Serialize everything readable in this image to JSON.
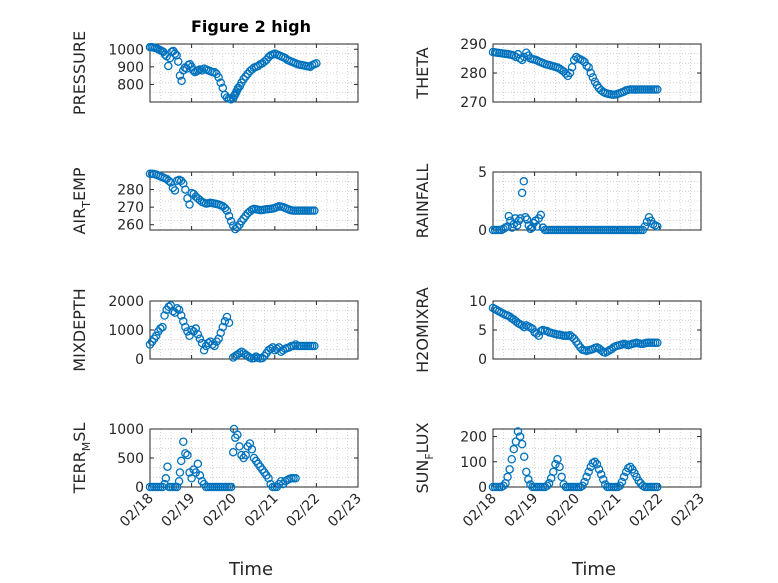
{
  "figure": {
    "title": "Figure 2 high",
    "xlabel": "Time",
    "x_tick_labels": [
      "02/18",
      "02/19",
      "02/20",
      "02/21",
      "02/22",
      "02/23"
    ],
    "marker_color": "#0072BD",
    "grid_color": "#cccccc",
    "axis_color": "#262626"
  },
  "chart_data": [
    {
      "type": "scatter",
      "ylabel": "PRESSURE",
      "ylim": [
        700,
        1030
      ],
      "yticks": [
        800,
        900,
        1000
      ],
      "x": [
        0,
        0.04,
        0.08,
        0.12,
        0.16,
        0.2,
        0.24,
        0.28,
        0.32,
        0.36,
        0.4,
        0.44,
        0.48,
        0.52,
        0.56,
        0.6,
        0.64,
        0.68,
        0.72,
        0.76,
        0.8,
        0.84,
        0.88,
        0.92,
        0.96,
        1.0,
        1.04,
        1.08,
        1.12,
        1.16,
        1.2,
        1.25,
        1.3,
        1.35,
        1.4,
        1.45,
        1.5,
        1.55,
        1.6,
        1.65,
        1.7,
        1.75,
        1.8,
        1.85,
        1.9,
        1.95,
        2.0,
        2.02,
        2.04,
        2.06,
        2.08,
        2.1,
        2.12,
        2.16,
        2.2,
        2.25,
        2.3,
        2.35,
        2.4,
        2.45,
        2.5,
        2.55,
        2.6,
        2.65,
        2.7,
        2.75,
        2.8,
        2.85,
        2.9,
        2.95,
        3.0,
        3.05,
        3.1,
        3.15,
        3.2,
        3.25,
        3.3,
        3.35,
        3.4,
        3.45,
        3.5,
        3.55,
        3.6,
        3.65,
        3.7,
        3.75,
        3.8,
        3.85,
        3.9,
        3.95,
        4.0
      ],
      "values": [
        1012,
        1012,
        1010,
        1008,
        1005,
        1000,
        995,
        990,
        985,
        970,
        960,
        905,
        950,
        985,
        990,
        975,
        965,
        930,
        850,
        820,
        880,
        895,
        890,
        910,
        915,
        900,
        880,
        870,
        875,
        880,
        885,
        880,
        890,
        885,
        880,
        875,
        870,
        870,
        860,
        840,
        810,
        780,
        740,
        725,
        720,
        715,
        720,
        735,
        740,
        750,
        760,
        770,
        780,
        790,
        810,
        830,
        845,
        860,
        875,
        885,
        895,
        900,
        905,
        915,
        920,
        930,
        940,
        955,
        965,
        970,
        975,
        970,
        965,
        960,
        955,
        950,
        940,
        935,
        930,
        925,
        920,
        915,
        912,
        910,
        908,
        905,
        903,
        900,
        910,
        915,
        920
      ]
    },
    {
      "type": "scatter",
      "ylabel": "THETA",
      "ylim": [
        270,
        290
      ],
      "yticks": [
        270,
        280,
        290
      ],
      "x": [
        0,
        0.05,
        0.1,
        0.15,
        0.2,
        0.25,
        0.3,
        0.35,
        0.4,
        0.45,
        0.5,
        0.55,
        0.6,
        0.65,
        0.7,
        0.75,
        0.8,
        0.85,
        0.9,
        0.95,
        1.0,
        1.05,
        1.1,
        1.15,
        1.2,
        1.25,
        1.3,
        1.35,
        1.4,
        1.45,
        1.5,
        1.55,
        1.6,
        1.65,
        1.7,
        1.75,
        1.8,
        1.85,
        1.9,
        1.95,
        2.0,
        2.05,
        2.1,
        2.15,
        2.2,
        2.25,
        2.3,
        2.35,
        2.4,
        2.45,
        2.5,
        2.55,
        2.6,
        2.65,
        2.7,
        2.75,
        2.8,
        2.85,
        2.9,
        2.95,
        3.0,
        3.05,
        3.1,
        3.15,
        3.2,
        3.25,
        3.3,
        3.35,
        3.4,
        3.45,
        3.5,
        3.55,
        3.6,
        3.65,
        3.7,
        3.75,
        3.8,
        3.85,
        3.9,
        3.95
      ],
      "values": [
        287.2,
        287.1,
        287,
        286.9,
        286.8,
        286.7,
        286.6,
        286.5,
        286.4,
        286.2,
        286,
        285.5,
        286.5,
        285,
        284.5,
        285.5,
        287,
        286,
        285,
        284.8,
        284.6,
        284.4,
        284,
        283.7,
        283.4,
        283.1,
        282.9,
        282.7,
        282.5,
        282.3,
        282.1,
        281.9,
        281.5,
        281,
        280.5,
        279.8,
        279,
        280,
        282,
        284.5,
        285.5,
        285,
        284.7,
        284.3,
        283.8,
        282.5,
        282,
        280,
        278.5,
        277,
        275.8,
        274.8,
        274,
        273.5,
        273.1,
        272.9,
        272.7,
        272.6,
        272.5,
        272.6,
        272.8,
        273,
        273.3,
        273.6,
        274,
        274.2,
        274.3,
        274.3,
        274.3,
        274.3,
        274.3,
        274.3,
        274.3,
        274.3,
        274.3,
        274.3,
        274.3,
        274.3,
        274.3,
        274.3
      ]
    },
    {
      "type": "scatter",
      "ylabel": "AIR_TEMP",
      "ylim": [
        257,
        290
      ],
      "yticks": [
        260,
        270,
        280
      ],
      "x": [
        0,
        0.05,
        0.1,
        0.15,
        0.2,
        0.25,
        0.3,
        0.35,
        0.4,
        0.45,
        0.5,
        0.55,
        0.6,
        0.65,
        0.7,
        0.75,
        0.8,
        0.85,
        0.9,
        0.95,
        1.0,
        1.05,
        1.1,
        1.15,
        1.2,
        1.25,
        1.3,
        1.35,
        1.4,
        1.45,
        1.5,
        1.55,
        1.6,
        1.65,
        1.7,
        1.75,
        1.8,
        1.85,
        1.9,
        1.95,
        2.0,
        2.05,
        2.1,
        2.15,
        2.2,
        2.25,
        2.3,
        2.35,
        2.4,
        2.45,
        2.5,
        2.55,
        2.6,
        2.65,
        2.7,
        2.75,
        2.8,
        2.85,
        2.9,
        2.95,
        3.0,
        3.05,
        3.1,
        3.15,
        3.2,
        3.25,
        3.3,
        3.35,
        3.4,
        3.45,
        3.5,
        3.55,
        3.6,
        3.65,
        3.7,
        3.75,
        3.8,
        3.85,
        3.9,
        3.95
      ],
      "values": [
        289,
        289,
        288.8,
        288.5,
        288,
        287.5,
        287,
        286.5,
        286,
        285,
        284,
        281,
        279.5,
        285,
        285.5,
        285,
        283.5,
        280,
        275,
        271.5,
        278,
        277.5,
        276,
        275,
        274,
        273,
        272.5,
        272,
        272.2,
        272.5,
        272.3,
        272,
        271.8,
        271.5,
        271,
        270.5,
        269.5,
        268,
        265,
        262,
        259.5,
        257.5,
        258.5,
        260,
        262,
        263.5,
        265,
        266.5,
        267.5,
        268.5,
        269,
        268.8,
        268.5,
        268.3,
        268.4,
        268.6,
        268.8,
        268.9,
        269,
        269.2,
        269.5,
        270,
        270.5,
        270.3,
        270,
        269.5,
        269,
        268.5,
        268.2,
        268,
        268,
        268,
        268,
        268,
        268,
        268,
        268,
        268,
        268,
        268
      ]
    },
    {
      "type": "scatter",
      "ylabel": "RAINFALL",
      "ylim": [
        0,
        5
      ],
      "yticks": [
        0,
        5
      ],
      "x": [
        0,
        0.05,
        0.1,
        0.15,
        0.2,
        0.25,
        0.3,
        0.35,
        0.38,
        0.42,
        0.46,
        0.5,
        0.54,
        0.58,
        0.62,
        0.66,
        0.7,
        0.74,
        0.78,
        0.82,
        0.86,
        0.9,
        0.94,
        0.98,
        1.02,
        1.06,
        1.1,
        1.15,
        1.2,
        1.25,
        1.3,
        1.35,
        1.4,
        1.45,
        1.5,
        1.55,
        1.6,
        1.65,
        1.7,
        1.75,
        1.8,
        1.85,
        1.9,
        1.95,
        2.0,
        2.05,
        2.1,
        2.15,
        2.2,
        2.25,
        2.3,
        2.35,
        2.4,
        2.45,
        2.5,
        2.55,
        2.6,
        2.65,
        2.7,
        2.75,
        2.8,
        2.85,
        2.9,
        2.95,
        3.0,
        3.05,
        3.1,
        3.15,
        3.2,
        3.25,
        3.3,
        3.35,
        3.4,
        3.45,
        3.5,
        3.55,
        3.6,
        3.65,
        3.7,
        3.75,
        3.8,
        3.85,
        3.9,
        3.95
      ],
      "values": [
        0,
        0,
        0,
        0,
        0,
        0.1,
        0.2,
        0.3,
        1.2,
        0.8,
        0.2,
        0.5,
        1,
        0.4,
        0.8,
        1,
        3.2,
        4.2,
        1.1,
        0.9,
        0.4,
        0.1,
        0.2,
        0.6,
        0.8,
        0.3,
        1,
        1.3,
        0.2,
        0,
        0,
        0,
        0,
        0,
        0,
        0,
        0,
        0,
        0,
        0,
        0,
        0,
        0,
        0,
        0,
        0,
        0,
        0,
        0,
        0,
        0,
        0,
        0,
        0,
        0,
        0,
        0,
        0,
        0,
        0,
        0,
        0,
        0,
        0,
        0,
        0,
        0,
        0,
        0,
        0,
        0,
        0,
        0,
        0,
        0,
        0,
        0,
        0.3,
        0.7,
        1.1,
        0.8,
        0.5,
        0.4,
        0.3
      ]
    },
    {
      "type": "scatter",
      "ylabel": "MIXDEPTH",
      "ylim": [
        0,
        2000
      ],
      "yticks": [
        0,
        1000,
        2000
      ],
      "x": [
        0,
        0.05,
        0.1,
        0.15,
        0.2,
        0.25,
        0.3,
        0.35,
        0.4,
        0.45,
        0.5,
        0.55,
        0.6,
        0.65,
        0.7,
        0.75,
        0.8,
        0.85,
        0.9,
        0.95,
        1.0,
        1.05,
        1.1,
        1.15,
        1.2,
        1.25,
        1.3,
        1.35,
        1.4,
        1.45,
        1.5,
        1.55,
        1.6,
        1.65,
        1.7,
        1.75,
        1.8,
        1.85,
        1.9,
        2.0,
        2.05,
        2.1,
        2.15,
        2.2,
        2.25,
        2.3,
        2.35,
        2.4,
        2.45,
        2.5,
        2.55,
        2.6,
        2.65,
        2.7,
        2.75,
        2.8,
        2.85,
        2.9,
        2.95,
        3.0,
        3.05,
        3.1,
        3.15,
        3.2,
        3.25,
        3.3,
        3.35,
        3.4,
        3.45,
        3.5,
        3.55,
        3.6,
        3.65,
        3.7,
        3.75,
        3.8,
        3.85,
        3.9,
        3.95
      ],
      "values": [
        500,
        600,
        700,
        800,
        950,
        1050,
        1100,
        1500,
        1700,
        1800,
        1850,
        1650,
        1600,
        1750,
        1700,
        1500,
        1300,
        1100,
        950,
        800,
        1000,
        950,
        1050,
        850,
        700,
        550,
        300,
        450,
        550,
        600,
        500,
        450,
        600,
        700,
        900,
        1100,
        1300,
        1450,
        1250,
        50,
        100,
        150,
        200,
        250,
        200,
        150,
        100,
        50,
        20,
        30,
        80,
        40,
        20,
        30,
        100,
        200,
        300,
        350,
        400,
        300,
        350,
        400,
        250,
        300,
        350,
        380,
        400,
        450,
        450,
        500,
        450,
        450,
        450,
        450,
        450,
        450,
        450,
        450,
        450
      ]
    },
    {
      "type": "scatter",
      "ylabel": "H2OMIXRA",
      "ylim": [
        0,
        10
      ],
      "yticks": [
        0,
        5,
        10
      ],
      "x": [
        0,
        0.05,
        0.1,
        0.15,
        0.2,
        0.25,
        0.3,
        0.35,
        0.4,
        0.45,
        0.5,
        0.55,
        0.6,
        0.65,
        0.7,
        0.75,
        0.8,
        0.85,
        0.9,
        0.95,
        1.0,
        1.05,
        1.1,
        1.15,
        1.2,
        1.25,
        1.3,
        1.35,
        1.4,
        1.45,
        1.5,
        1.55,
        1.6,
        1.65,
        1.7,
        1.75,
        1.8,
        1.85,
        1.9,
        1.95,
        2.0,
        2.05,
        2.1,
        2.15,
        2.2,
        2.25,
        2.3,
        2.35,
        2.4,
        2.45,
        2.5,
        2.55,
        2.6,
        2.65,
        2.7,
        2.75,
        2.8,
        2.85,
        2.9,
        2.95,
        3.0,
        3.05,
        3.1,
        3.15,
        3.2,
        3.25,
        3.3,
        3.35,
        3.4,
        3.45,
        3.5,
        3.55,
        3.6,
        3.65,
        3.7,
        3.75,
        3.8,
        3.85,
        3.9,
        3.95
      ],
      "values": [
        8.8,
        8.6,
        8.4,
        8.2,
        8,
        7.8,
        7.6,
        7.5,
        7.3,
        7,
        6.8,
        6.5,
        6.2,
        6,
        5.8,
        5.5,
        5.8,
        5.6,
        5.4,
        5.2,
        4.6,
        4.4,
        4,
        4.8,
        5,
        4.9,
        4.8,
        4.6,
        4.5,
        4.4,
        4.3,
        4.2,
        4.2,
        4.1,
        4,
        4,
        4,
        4.1,
        3.8,
        3.5,
        3,
        2.5,
        2,
        1.6,
        1.5,
        1.4,
        1.5,
        1.6,
        1.7,
        1.9,
        2,
        1.8,
        1.5,
        1.2,
        1.1,
        1.3,
        1.5,
        1.7,
        2,
        2.2,
        2.3,
        2.4,
        2.5,
        2.6,
        2.5,
        2.4,
        2.5,
        2.6,
        2.7,
        2.8,
        2.7,
        2.6,
        2.6,
        2.7,
        2.8,
        2.8,
        2.8,
        2.8,
        2.8,
        2.8
      ]
    },
    {
      "type": "scatter",
      "ylabel": "TERR_MSL",
      "ylim": [
        0,
        1000
      ],
      "yticks": [
        0,
        500,
        1000
      ],
      "x": [
        0,
        0.05,
        0.1,
        0.15,
        0.2,
        0.25,
        0.3,
        0.35,
        0.38,
        0.42,
        0.46,
        0.5,
        0.55,
        0.6,
        0.65,
        0.7,
        0.72,
        0.75,
        0.8,
        0.85,
        0.9,
        0.95,
        1.0,
        1.05,
        1.1,
        1.15,
        1.2,
        1.25,
        1.3,
        1.35,
        1.4,
        1.45,
        1.5,
        1.55,
        1.6,
        1.65,
        1.7,
        1.75,
        1.8,
        1.85,
        1.9,
        1.95,
        2.0,
        2.02,
        2.05,
        2.1,
        2.15,
        2.2,
        2.25,
        2.3,
        2.35,
        2.4,
        2.45,
        2.5,
        2.55,
        2.6,
        2.65,
        2.7,
        2.75,
        2.8,
        2.85,
        2.9,
        2.95,
        3.0,
        3.05,
        3.1,
        3.15,
        3.2,
        3.25,
        3.3,
        3.35,
        3.4,
        3.45,
        3.5
      ],
      "values": [
        0,
        0,
        0,
        0,
        0,
        0,
        0,
        50,
        150,
        350,
        0,
        0,
        0,
        0,
        0,
        100,
        250,
        450,
        780,
        580,
        550,
        250,
        150,
        300,
        250,
        400,
        200,
        100,
        50,
        0,
        0,
        0,
        0,
        0,
        0,
        0,
        0,
        0,
        0,
        0,
        0,
        0,
        600,
        1000,
        850,
        900,
        700,
        550,
        500,
        550,
        700,
        750,
        650,
        500,
        450,
        400,
        350,
        300,
        250,
        200,
        150,
        50,
        0,
        0,
        0,
        50,
        100,
        50,
        100,
        120,
        140,
        150,
        150,
        150
      ]
    },
    {
      "type": "scatter",
      "ylabel": "SUN_FLUX",
      "ylim": [
        0,
        230
      ],
      "yticks": [
        0,
        100,
        200
      ],
      "x": [
        0,
        0.05,
        0.1,
        0.15,
        0.2,
        0.25,
        0.3,
        0.35,
        0.4,
        0.45,
        0.5,
        0.55,
        0.6,
        0.65,
        0.7,
        0.75,
        0.8,
        0.85,
        0.9,
        0.95,
        1.0,
        1.05,
        1.1,
        1.15,
        1.2,
        1.25,
        1.3,
        1.35,
        1.4,
        1.45,
        1.5,
        1.55,
        1.6,
        1.65,
        1.7,
        1.75,
        1.8,
        1.85,
        1.9,
        1.95,
        2.0,
        2.05,
        2.1,
        2.15,
        2.2,
        2.25,
        2.3,
        2.35,
        2.4,
        2.45,
        2.5,
        2.55,
        2.6,
        2.65,
        2.7,
        2.75,
        2.8,
        2.85,
        2.9,
        2.95,
        3.0,
        3.05,
        3.1,
        3.15,
        3.2,
        3.25,
        3.3,
        3.35,
        3.4,
        3.45,
        3.5,
        3.55,
        3.6,
        3.65,
        3.7,
        3.75,
        3.8,
        3.85,
        3.9,
        3.95
      ],
      "values": [
        0,
        0,
        0,
        0,
        0,
        5,
        15,
        40,
        70,
        110,
        150,
        180,
        220,
        200,
        170,
        120,
        60,
        30,
        10,
        0,
        0,
        0,
        0,
        0,
        0,
        0,
        5,
        15,
        35,
        60,
        90,
        110,
        80,
        40,
        10,
        0,
        0,
        0,
        0,
        0,
        0,
        0,
        0,
        5,
        20,
        40,
        60,
        80,
        95,
        100,
        90,
        70,
        50,
        30,
        10,
        0,
        0,
        0,
        0,
        0,
        0,
        5,
        20,
        40,
        60,
        75,
        80,
        70,
        55,
        40,
        25,
        15,
        5,
        0,
        0,
        0,
        0,
        0,
        0,
        0
      ]
    }
  ]
}
